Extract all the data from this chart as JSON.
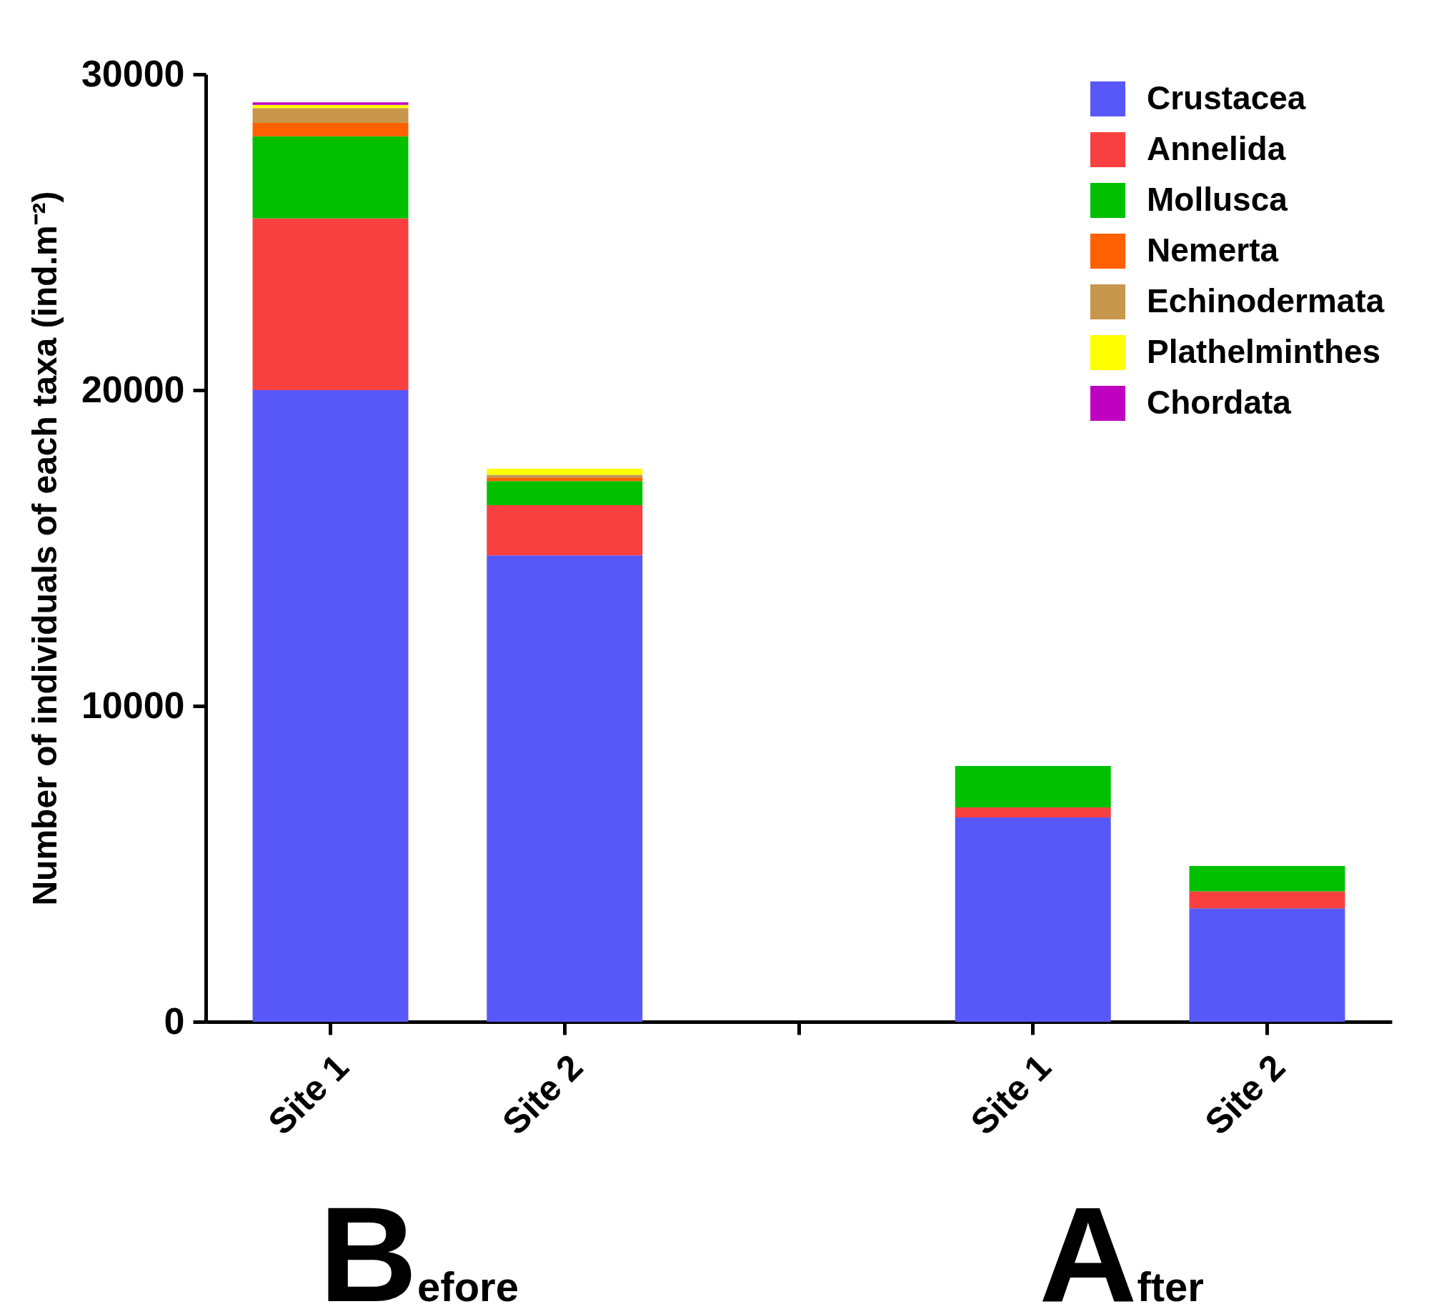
{
  "chart_data": {
    "type": "bar",
    "stacked": true,
    "ylabel": "Number of individuals of each taxa (ind.m⁻²)",
    "categories": [
      "Site 1",
      "Site 2",
      null,
      "Site 1",
      "Site 2"
    ],
    "series": [
      {
        "name": "Crustacea",
        "color": "#5858f8",
        "values": [
          20000,
          14770,
          null,
          6470,
          3590
        ]
      },
      {
        "name": "Annelida",
        "color": "#f84040",
        "values": [
          5440,
          1590,
          null,
          320,
          540
        ]
      },
      {
        "name": "Mollusca",
        "color": "#00c000",
        "values": [
          2600,
          760,
          null,
          1310,
          800
        ]
      },
      {
        "name": "Nemerta",
        "color": "#ff6000",
        "values": [
          420,
          100,
          null,
          0,
          0
        ]
      },
      {
        "name": "Echinodermata",
        "color": "#c8964c",
        "values": [
          470,
          100,
          null,
          0,
          0
        ]
      },
      {
        "name": "Plathelminthes",
        "color": "#ffff00",
        "values": [
          100,
          190,
          null,
          0,
          0
        ]
      },
      {
        "name": "Chordata",
        "color": "#c000c0",
        "values": [
          80,
          0,
          null,
          0,
          0
        ]
      }
    ],
    "ylim": [
      0,
      30000
    ],
    "yticks": [
      0,
      10000,
      20000,
      30000
    ],
    "legend": "top right",
    "grid": false,
    "annotations": [
      "Before",
      "After"
    ]
  }
}
